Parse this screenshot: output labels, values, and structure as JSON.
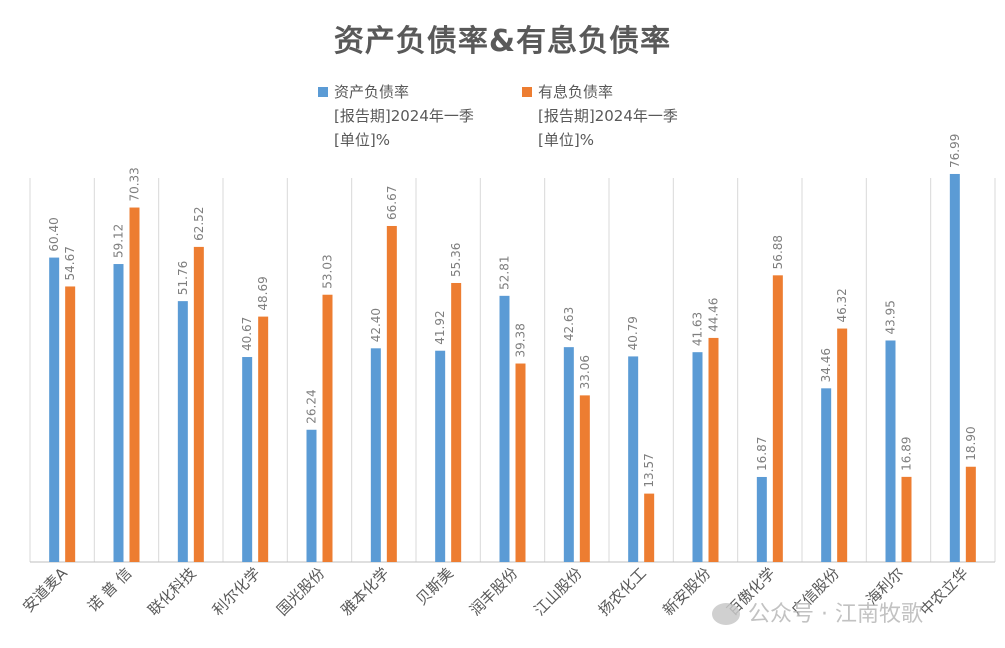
{
  "chart_data": {
    "type": "bar",
    "title": "资产负债率&有息负债率",
    "categories": [
      "安道麦A",
      "诺 普 信",
      "联化科技",
      "利尔化学",
      "国光股份",
      "雅本化学",
      "贝斯美",
      "润丰股份",
      "江山股份",
      "扬农化工",
      "新安股份",
      "百傲化学",
      "广信股份",
      "海利尔",
      "中农立华"
    ],
    "series": [
      {
        "name": "资产负债率",
        "sub": [
          "[报告期]2024年一季",
          "[单位]%"
        ],
        "color": "#5b9bd5",
        "values": [
          60.4,
          59.12,
          51.76,
          40.67,
          26.24,
          42.4,
          41.92,
          52.81,
          42.63,
          40.79,
          41.63,
          16.87,
          34.46,
          43.95,
          76.99
        ]
      },
      {
        "name": "有息负债率",
        "sub": [
          "[报告期]2024年一季",
          "[单位]%"
        ],
        "color": "#ed7d31",
        "values": [
          54.67,
          70.33,
          62.52,
          48.69,
          53.03,
          66.67,
          55.36,
          39.38,
          33.06,
          13.57,
          44.46,
          56.88,
          46.32,
          16.89,
          18.9
        ]
      }
    ],
    "ylim": [
      0,
      100
    ],
    "grid": "vertical-category-separators",
    "legend": "top-center"
  },
  "watermark": "公众号 · 江南牧歌"
}
